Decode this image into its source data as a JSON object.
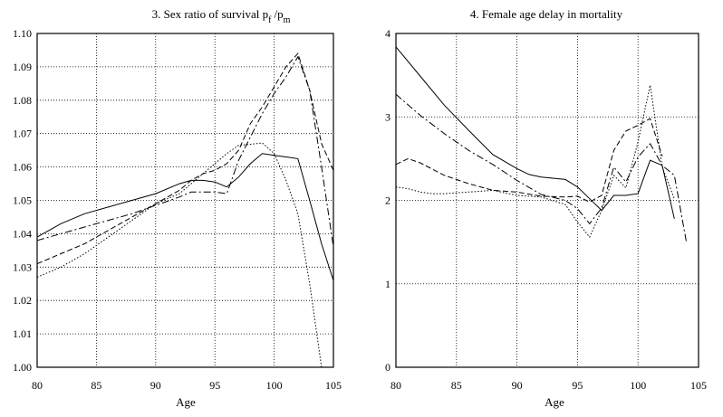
{
  "chart_data": [
    {
      "type": "line",
      "title": "3. Sex ratio of survival",
      "title_math": {
        "p1": "p",
        "s1": "f",
        "slash": "/",
        "p2": "p",
        "s2": "m"
      },
      "xlabel": "Age",
      "ylabel": "",
      "xlim": [
        80,
        105
      ],
      "ylim": [
        1.0,
        1.1
      ],
      "xticks": [
        "80",
        "85",
        "90",
        "95",
        "100",
        "105"
      ],
      "xtick_values": [
        80,
        85,
        90,
        95,
        100,
        105
      ],
      "yticks": [
        "1.00",
        "1.01",
        "1.02",
        "1.03",
        "1.04",
        "1.05",
        "1.06",
        "1.07",
        "1.08",
        "1.09",
        "1.10"
      ],
      "ytick_values": [
        1.0,
        1.01,
        1.02,
        1.03,
        1.04,
        1.05,
        1.06,
        1.07,
        1.08,
        1.09,
        1.1
      ],
      "grid": true,
      "series": [
        {
          "style": "solid",
          "x": [
            80,
            82,
            84,
            86,
            88,
            90,
            92,
            93,
            94,
            95,
            96,
            97,
            98,
            99,
            100,
            101,
            102,
            103,
            104,
            105
          ],
          "y": [
            1.039,
            1.043,
            1.046,
            1.048,
            1.05,
            1.052,
            1.055,
            1.056,
            1.056,
            1.0555,
            1.054,
            1.057,
            1.061,
            1.064,
            1.0635,
            1.063,
            1.0625,
            1.05,
            1.037,
            1.026
          ]
        },
        {
          "style": "dashed",
          "x": [
            80,
            82,
            84,
            86,
            88,
            90,
            92,
            93,
            94,
            95,
            96,
            97,
            98,
            99,
            100,
            101,
            102,
            103,
            104,
            105
          ],
          "y": [
            1.031,
            1.034,
            1.037,
            1.041,
            1.045,
            1.049,
            1.053,
            1.056,
            1.058,
            1.059,
            1.061,
            1.065,
            1.073,
            1.078,
            1.084,
            1.09,
            1.094,
            1.083,
            1.067,
            1.059
          ]
        },
        {
          "style": "dashdot",
          "x": [
            80,
            82,
            84,
            86,
            88,
            90,
            92,
            93,
            94,
            95,
            96,
            97,
            98,
            99,
            100,
            101,
            102,
            103,
            104,
            105
          ],
          "y": [
            1.038,
            1.04,
            1.042,
            1.044,
            1.046,
            1.0485,
            1.051,
            1.0525,
            1.0525,
            1.0525,
            1.052,
            1.062,
            1.069,
            1.076,
            1.082,
            1.087,
            1.093,
            1.083,
            1.06,
            1.036
          ]
        },
        {
          "style": "dotted",
          "x": [
            80,
            82,
            84,
            86,
            88,
            90,
            92,
            93,
            94,
            95,
            96,
            97,
            98,
            99,
            100,
            101,
            102,
            103,
            104
          ],
          "y": [
            1.027,
            1.03,
            1.034,
            1.039,
            1.044,
            1.049,
            1.052,
            1.055,
            1.058,
            1.061,
            1.064,
            1.0665,
            1.0668,
            1.0672,
            1.064,
            1.056,
            1.046,
            1.025,
            1.0
          ]
        }
      ]
    },
    {
      "type": "line",
      "title": "4. Female age delay in mortality",
      "xlabel": "Age",
      "ylabel": "",
      "xlim": [
        80,
        105
      ],
      "ylim": [
        0,
        4
      ],
      "xticks": [
        "80",
        "85",
        "90",
        "95",
        "100",
        "105"
      ],
      "xtick_values": [
        80,
        85,
        90,
        95,
        100,
        105
      ],
      "yticks": [
        "0",
        "1",
        "2",
        "3",
        "4"
      ],
      "ytick_values": [
        0,
        1,
        2,
        3,
        4
      ],
      "grid": true,
      "series": [
        {
          "style": "solid",
          "x": [
            80,
            82,
            84,
            86,
            88,
            90,
            91,
            92,
            94,
            95,
            96,
            97,
            98,
            99,
            100,
            101,
            102,
            103
          ],
          "y": [
            3.84,
            3.49,
            3.14,
            2.84,
            2.55,
            2.38,
            2.31,
            2.28,
            2.25,
            2.16,
            2.02,
            1.88,
            2.06,
            2.06,
            2.08,
            2.48,
            2.42,
            1.78
          ]
        },
        {
          "style": "dashed",
          "x": [
            80,
            81,
            82,
            84,
            86,
            88,
            90,
            92,
            94,
            95,
            96,
            97,
            98,
            99,
            100,
            101,
            102
          ],
          "y": [
            2.43,
            2.5,
            2.45,
            2.3,
            2.2,
            2.12,
            2.1,
            2.05,
            2.04,
            2.05,
            1.98,
            2.06,
            2.6,
            2.83,
            2.9,
            2.98,
            2.53
          ]
        },
        {
          "style": "dashdot",
          "x": [
            80,
            82,
            84,
            86,
            88,
            90,
            92,
            94,
            95,
            96,
            97,
            98,
            99,
            100,
            101,
            102,
            103,
            104
          ],
          "y": [
            3.27,
            3.02,
            2.8,
            2.6,
            2.43,
            2.24,
            2.07,
            2.0,
            1.9,
            1.72,
            1.91,
            2.4,
            2.22,
            2.52,
            2.68,
            2.42,
            2.3,
            1.5
          ]
        },
        {
          "style": "dotted",
          "x": [
            80,
            81,
            82,
            83,
            84,
            86,
            88,
            90,
            92,
            94,
            95,
            96,
            97,
            98,
            99,
            100,
            101,
            102,
            103
          ],
          "y": [
            2.16,
            2.14,
            2.1,
            2.08,
            2.08,
            2.1,
            2.12,
            2.06,
            2.04,
            1.95,
            1.74,
            1.56,
            1.88,
            2.3,
            2.15,
            2.7,
            3.38,
            2.4,
            2.02
          ]
        }
      ]
    }
  ]
}
